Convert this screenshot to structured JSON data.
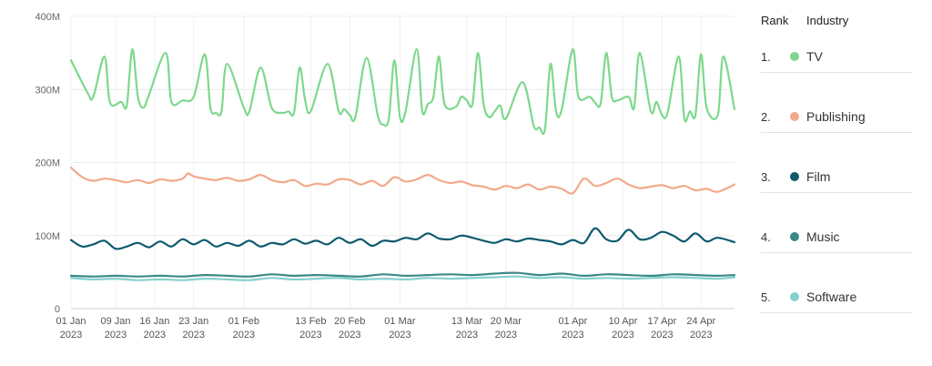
{
  "chart_data": {
    "type": "line",
    "title": "",
    "xlabel": "",
    "ylabel": "",
    "ylim": [
      0,
      400
    ],
    "y_unit": "M",
    "y_ticks": [
      {
        "value": 0,
        "label": "0"
      },
      {
        "value": 100,
        "label": "100M"
      },
      {
        "value": 200,
        "label": "200M"
      },
      {
        "value": 300,
        "label": "300M"
      },
      {
        "value": 400,
        "label": "400M"
      }
    ],
    "x_ticks": [
      {
        "day": 0,
        "label": "01 Jan",
        "year": "2023"
      },
      {
        "day": 8,
        "label": "09 Jan",
        "year": "2023"
      },
      {
        "day": 15,
        "label": "16 Jan",
        "year": "2023"
      },
      {
        "day": 22,
        "label": "23 Jan",
        "year": "2023"
      },
      {
        "day": 31,
        "label": "01 Feb",
        "year": "2023"
      },
      {
        "day": 43,
        "label": "13 Feb",
        "year": "2023"
      },
      {
        "day": 50,
        "label": "20 Feb",
        "year": "2023"
      },
      {
        "day": 59,
        "label": "01 Mar",
        "year": "2023"
      },
      {
        "day": 71,
        "label": "13 Mar",
        "year": "2023"
      },
      {
        "day": 78,
        "label": "20 Mar",
        "year": "2023"
      },
      {
        "day": 90,
        "label": "01 Apr",
        "year": "2023"
      },
      {
        "day": 99,
        "label": "10 Apr",
        "year": "2023"
      },
      {
        "day": 106,
        "label": "17 Apr",
        "year": "2023"
      },
      {
        "day": 113,
        "label": "24 Apr",
        "year": "2023"
      }
    ],
    "x_range_days": [
      0,
      119
    ],
    "grid": true,
    "legend_position": "right",
    "legend_headers": {
      "rank": "Rank",
      "industry": "Industry"
    },
    "series": [
      {
        "name": "TV",
        "rank": "1.",
        "color": "#7dd88d",
        "x": [
          0,
          3,
          4,
          6,
          7,
          9,
          10,
          11,
          12,
          13,
          14,
          17,
          18,
          20,
          22,
          24,
          25,
          26,
          27,
          28,
          31,
          32,
          34,
          36,
          38,
          39,
          40,
          41,
          42,
          43,
          46,
          48,
          49,
          50,
          51,
          53,
          55,
          56,
          57,
          58,
          59,
          60,
          62,
          63,
          64,
          65,
          66,
          67,
          69,
          70,
          71,
          72,
          73,
          74,
          75,
          76,
          77,
          78,
          81,
          83,
          84,
          85,
          86,
          87,
          88,
          90,
          91,
          93,
          94,
          95,
          96,
          97,
          98,
          100,
          101,
          102,
          104,
          105,
          106,
          107,
          109,
          110,
          111,
          112,
          113,
          114,
          116,
          117,
          119
        ],
        "y": [
          340,
          295,
          290,
          345,
          282,
          283,
          278,
          355,
          290,
          275,
          293,
          350,
          283,
          285,
          290,
          348,
          275,
          268,
          270,
          335,
          275,
          270,
          330,
          275,
          268,
          270,
          268,
          330,
          285,
          270,
          335,
          270,
          273,
          265,
          262,
          343,
          265,
          252,
          260,
          340,
          262,
          270,
          355,
          270,
          280,
          290,
          345,
          280,
          276,
          290,
          285,
          280,
          350,
          280,
          262,
          270,
          278,
          260,
          310,
          250,
          248,
          245,
          335,
          270,
          272,
          355,
          290,
          290,
          282,
          281,
          350,
          290,
          285,
          290,
          275,
          350,
          270,
          283,
          265,
          268,
          345,
          260,
          270,
          265,
          348,
          275,
          265,
          345,
          273
        ]
      },
      {
        "name": "Publishing",
        "rank": "2.",
        "color": "#f2a98a",
        "x": [
          0,
          2,
          4,
          6,
          8,
          10,
          12,
          14,
          16,
          18,
          20,
          21,
          22,
          24,
          26,
          28,
          30,
          32,
          34,
          36,
          38,
          40,
          42,
          44,
          46,
          48,
          50,
          52,
          54,
          56,
          58,
          60,
          62,
          64,
          66,
          68,
          70,
          72,
          74,
          76,
          78,
          80,
          82,
          84,
          86,
          88,
          90,
          92,
          94,
          96,
          98,
          100,
          102,
          104,
          106,
          108,
          110,
          112,
          114,
          116,
          119
        ],
        "y": [
          193,
          180,
          175,
          178,
          176,
          173,
          176,
          172,
          177,
          175,
          178,
          185,
          181,
          178,
          176,
          179,
          175,
          177,
          183,
          176,
          173,
          176,
          168,
          171,
          170,
          177,
          176,
          170,
          175,
          168,
          180,
          174,
          177,
          183,
          176,
          172,
          174,
          169,
          167,
          163,
          168,
          165,
          170,
          163,
          167,
          164,
          158,
          178,
          168,
          172,
          178,
          170,
          165,
          167,
          169,
          165,
          168,
          162,
          164,
          160,
          170
        ]
      },
      {
        "name": "Film",
        "rank": "3.",
        "color": "#0e5a6e",
        "x": [
          0,
          2,
          4,
          6,
          8,
          10,
          12,
          14,
          16,
          18,
          20,
          22,
          24,
          26,
          28,
          30,
          32,
          34,
          36,
          38,
          40,
          42,
          44,
          46,
          48,
          50,
          52,
          54,
          56,
          58,
          60,
          62,
          64,
          66,
          68,
          70,
          72,
          74,
          76,
          78,
          80,
          82,
          84,
          86,
          88,
          90,
          92,
          94,
          96,
          98,
          100,
          102,
          104,
          106,
          108,
          110,
          112,
          114,
          116,
          119
        ],
        "y": [
          94,
          85,
          88,
          93,
          82,
          85,
          90,
          84,
          92,
          85,
          95,
          88,
          94,
          85,
          90,
          86,
          93,
          85,
          90,
          88,
          95,
          89,
          93,
          88,
          97,
          90,
          95,
          86,
          93,
          92,
          97,
          95,
          103,
          96,
          95,
          100,
          97,
          93,
          90,
          95,
          92,
          96,
          94,
          92,
          88,
          94,
          90,
          110,
          95,
          93,
          108,
          95,
          97,
          105,
          100,
          92,
          103,
          92,
          97,
          91
        ]
      },
      {
        "name": "Music",
        "rank": "4.",
        "color": "#3c8a87",
        "x": [
          0,
          4,
          8,
          12,
          16,
          20,
          24,
          28,
          32,
          36,
          40,
          44,
          48,
          52,
          56,
          60,
          64,
          68,
          72,
          76,
          80,
          84,
          88,
          92,
          96,
          100,
          104,
          108,
          112,
          116,
          119
        ],
        "y": [
          45,
          44,
          45,
          44,
          45,
          44,
          46,
          45,
          44,
          47,
          45,
          46,
          45,
          44,
          47,
          45,
          46,
          47,
          46,
          48,
          49,
          46,
          48,
          45,
          47,
          46,
          45,
          47,
          46,
          45,
          46
        ]
      },
      {
        "name": "Software",
        "rank": "5.",
        "color": "#86d0cd",
        "x": [
          0,
          4,
          8,
          12,
          16,
          20,
          24,
          28,
          32,
          36,
          40,
          44,
          48,
          52,
          56,
          60,
          64,
          68,
          72,
          76,
          80,
          84,
          88,
          92,
          96,
          100,
          104,
          108,
          112,
          116,
          119
        ],
        "y": [
          42,
          40,
          41,
          39,
          40,
          39,
          41,
          40,
          39,
          42,
          40,
          41,
          42,
          40,
          41,
          40,
          42,
          41,
          42,
          43,
          44,
          42,
          43,
          41,
          42,
          41,
          42,
          43,
          42,
          41,
          43
        ]
      }
    ]
  }
}
